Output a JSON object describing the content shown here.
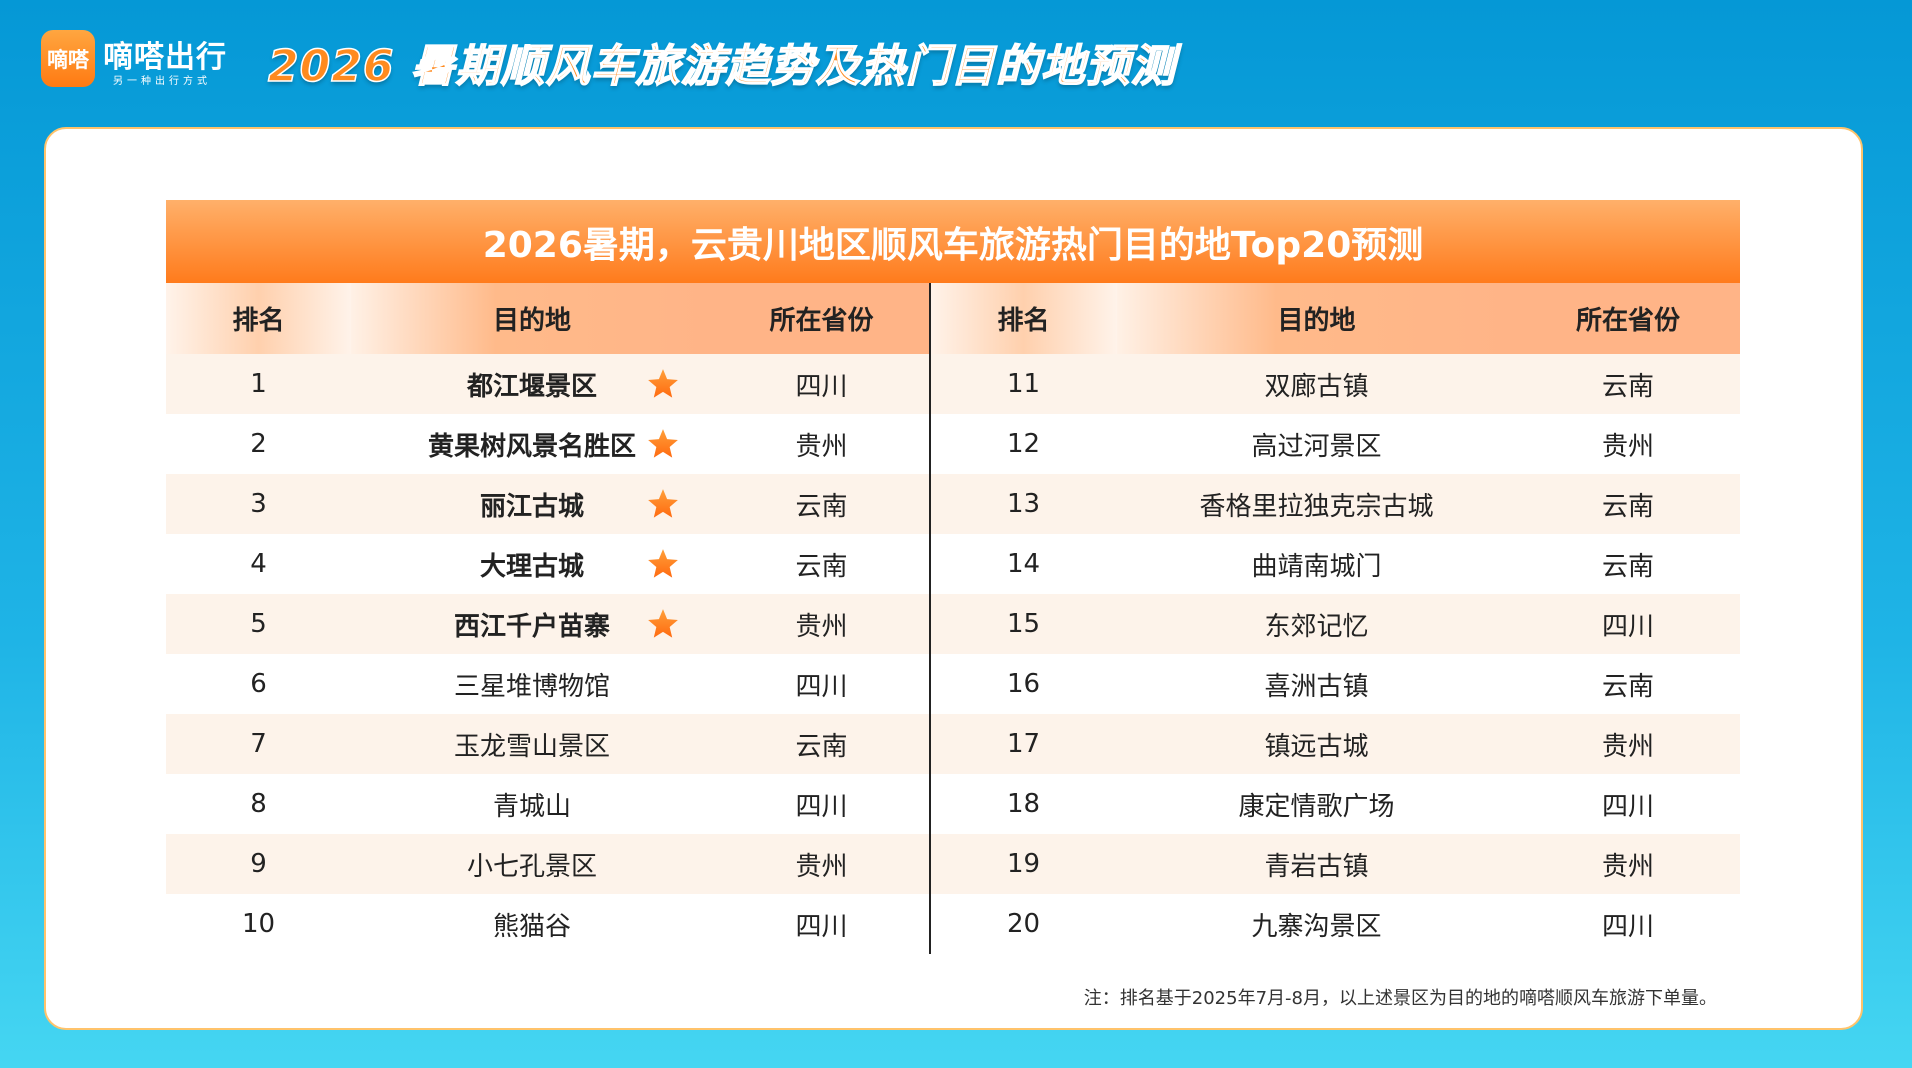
{
  "header": {
    "logo_text": "嘀嗒",
    "brand": "嘀嗒出行",
    "slogan": "另一种出行方式",
    "title": "2026 暑期顺风车旅游趋势及热门目的地预测"
  },
  "table": {
    "title": "2026暑期，云贵川地区顺风车旅游热门目的地Top20预测",
    "columns": [
      "排名",
      "目的地",
      "所在省份"
    ],
    "rows": [
      {
        "rank": 1,
        "destination": "都江堰景区",
        "province": "四川",
        "starred": true
      },
      {
        "rank": 2,
        "destination": "黄果树风景名胜区",
        "province": "贵州",
        "starred": true
      },
      {
        "rank": 3,
        "destination": "丽江古城",
        "province": "云南",
        "starred": true
      },
      {
        "rank": 4,
        "destination": "大理古城",
        "province": "云南",
        "starred": true
      },
      {
        "rank": 5,
        "destination": "西江千户苗寨",
        "province": "贵州",
        "starred": true
      },
      {
        "rank": 6,
        "destination": "三星堆博物馆",
        "province": "四川",
        "starred": false
      },
      {
        "rank": 7,
        "destination": "玉龙雪山景区",
        "province": "云南",
        "starred": false
      },
      {
        "rank": 8,
        "destination": "青城山",
        "province": "四川",
        "starred": false
      },
      {
        "rank": 9,
        "destination": "小七孔景区",
        "province": "贵州",
        "starred": false
      },
      {
        "rank": 10,
        "destination": "熊猫谷",
        "province": "四川",
        "starred": false
      },
      {
        "rank": 11,
        "destination": "双廊古镇",
        "province": "云南",
        "starred": false
      },
      {
        "rank": 12,
        "destination": "高过河景区",
        "province": "贵州",
        "starred": false
      },
      {
        "rank": 13,
        "destination": "香格里拉独克宗古城",
        "province": "云南",
        "starred": false
      },
      {
        "rank": 14,
        "destination": "曲靖南城门",
        "province": "云南",
        "starred": false
      },
      {
        "rank": 15,
        "destination": "东郊记忆",
        "province": "四川",
        "starred": false
      },
      {
        "rank": 16,
        "destination": "喜洲古镇",
        "province": "云南",
        "starred": false
      },
      {
        "rank": 17,
        "destination": "镇远古城",
        "province": "贵州",
        "starred": false
      },
      {
        "rank": 18,
        "destination": "康定情歌广场",
        "province": "四川",
        "starred": false
      },
      {
        "rank": 19,
        "destination": "青岩古镇",
        "province": "贵州",
        "starred": false
      },
      {
        "rank": 20,
        "destination": "九寨沟景区",
        "province": "四川",
        "starred": false
      }
    ]
  },
  "note": "注：排名基于2025年7月-8月，以上述景区为目的地的嘀嗒顺风车旅游下单量。"
}
